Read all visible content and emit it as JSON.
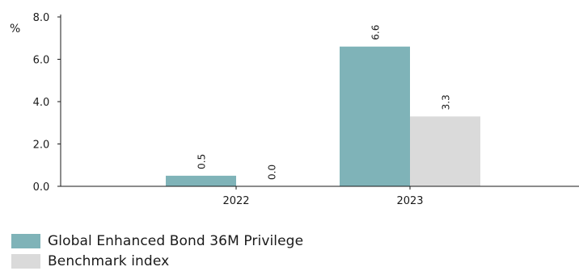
{
  "chart_data": {
    "type": "bar",
    "ylabel": "%",
    "ylim": [
      0,
      8
    ],
    "yticks": [
      "0.0",
      "2.0",
      "4.0",
      "6.0",
      "8.0"
    ],
    "categories": [
      "2022",
      "2023"
    ],
    "series": [
      {
        "name": "Global Enhanced Bond 36M Privilege",
        "values": [
          0.5,
          6.6
        ],
        "labels": [
          "0.5",
          "6.6"
        ],
        "color": "#7fb3b8"
      },
      {
        "name": "Benchmark index",
        "values": [
          0.0,
          3.3
        ],
        "labels": [
          "0.0",
          "3.3"
        ],
        "color": "#dadada"
      }
    ],
    "legend_position": "bottom-left",
    "grid": false
  }
}
